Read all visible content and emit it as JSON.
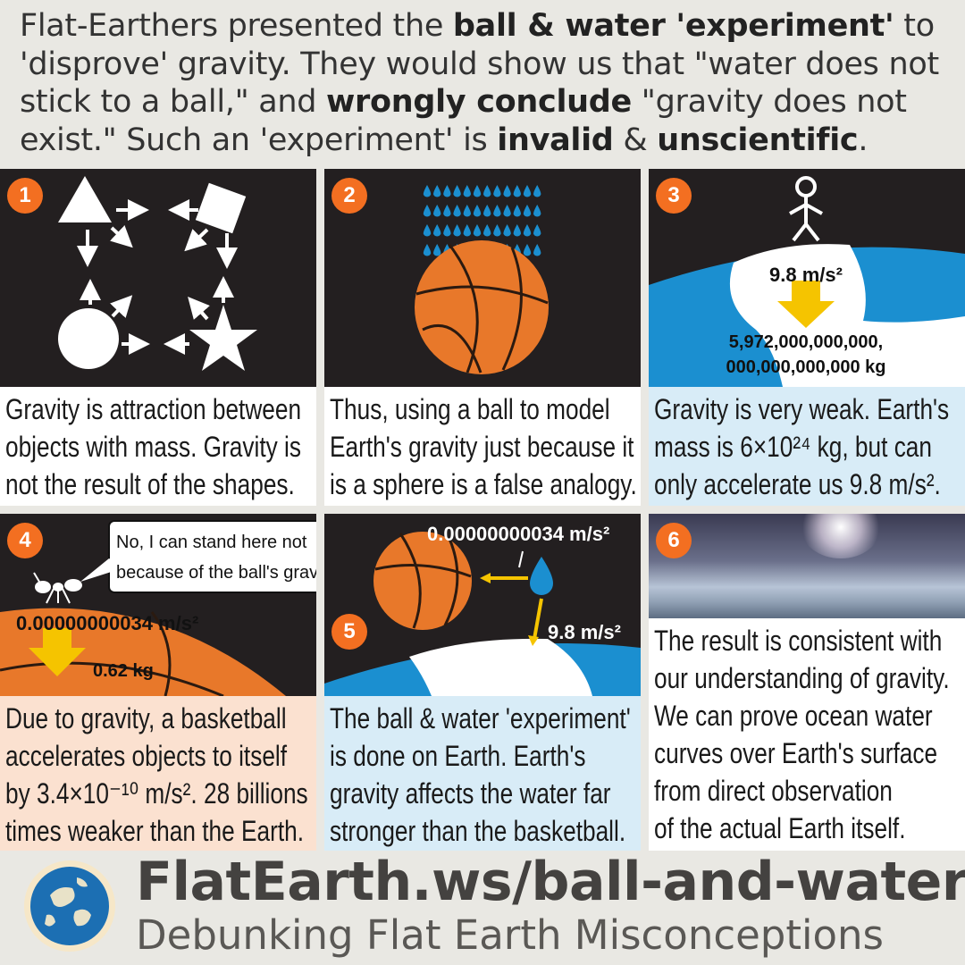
{
  "header": {
    "parts": [
      {
        "text": "Flat-Earthers presented the ",
        "bold": false
      },
      {
        "text": "ball & water 'experiment'",
        "bold": true
      },
      {
        "text": " to 'disprove' gravity. They would show us that \"water does not stick to a ball,\" and ",
        "bold": false
      },
      {
        "text": "wrongly conclude",
        "bold": true
      },
      {
        "text": " \"gravity does not exist.\" Such an 'experiment' is ",
        "bold": false
      },
      {
        "text": "invalid",
        "bold": true
      },
      {
        "text": " & ",
        "bold": false
      },
      {
        "text": "unscientific",
        "bold": true
      },
      {
        "text": ".",
        "bold": false
      }
    ]
  },
  "panels": [
    {
      "number": "1",
      "caption": [
        "Gravity is attraction between",
        "objects with mass. Gravity is",
        "not the result of the shapes."
      ]
    },
    {
      "number": "2",
      "caption": [
        "Thus, using a ball to model",
        "Earth's gravity just because it",
        "is a sphere is a false analogy."
      ]
    },
    {
      "number": "3",
      "caption": [
        "Gravity is very weak. Earth's",
        "mass is 6×10²⁴ kg, but can",
        "only accelerate us 9.8 m/s²."
      ],
      "labels": {
        "accel": "9.8 m/s²",
        "mass_line1": "5,972,000,000,000,",
        "mass_line2": "000,000,000,000 kg"
      }
    },
    {
      "number": "4",
      "caption": [
        "Due to gravity, a basketball",
        "accelerates objects to itself",
        "by 3.4×10⁻¹⁰ m/s². 28 billions",
        "times weaker than the Earth."
      ],
      "labels": {
        "speech": [
          "No, I can stand here not",
          "because of the ball's gravity."
        ],
        "accel": "0.00000000034 m/s²",
        "mass": "0.62 kg"
      }
    },
    {
      "number": "5",
      "caption": [
        "The ball & water 'experiment'",
        "is done on Earth. Earth's",
        "gravity affects the water far",
        "stronger than the basketball."
      ],
      "labels": {
        "ball_accel": "0.00000000034 m/s²",
        "earth_accel": "9.8 m/s²"
      }
    },
    {
      "number": "6",
      "caption": [
        "The result is consistent with",
        "our understanding of gravity.",
        "We can prove ocean water",
        "curves over Earth's surface",
        "from direct observation",
        "of the actual Earth itself."
      ]
    }
  ],
  "footer": {
    "title": "FlatEarth.ws/ball-and-water",
    "subtitle": "Debunking Flat Earth Misconceptions"
  },
  "colors": {
    "accent": "#f36f21",
    "panel_bg": "#231f20",
    "water": "#1b8fd0",
    "arrow": "#f5c400",
    "basketball": "#e8782a"
  }
}
